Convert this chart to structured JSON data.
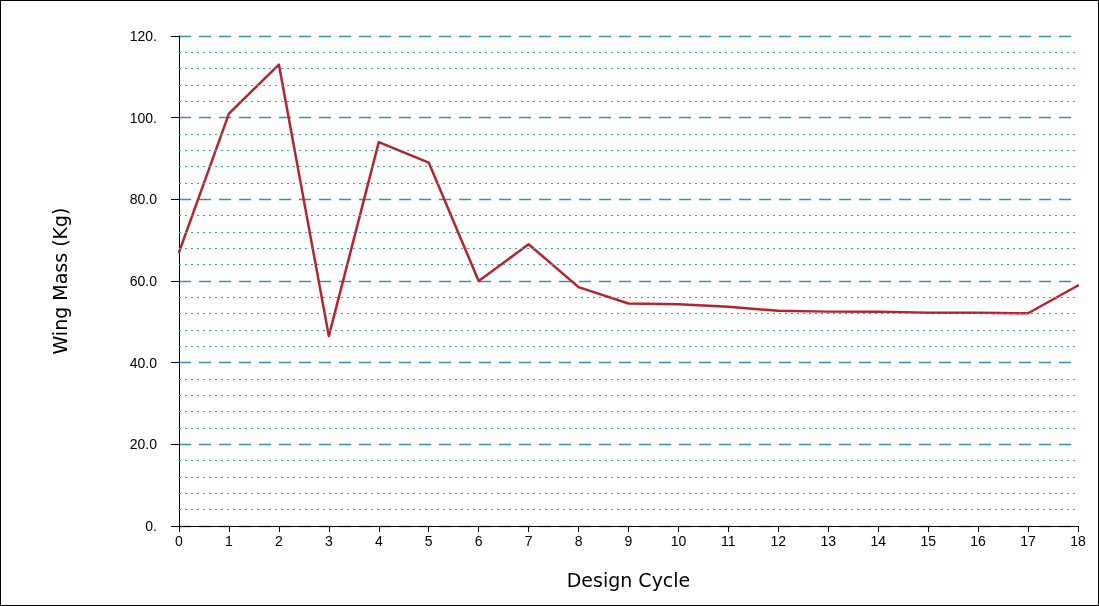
{
  "chart_data": {
    "type": "line",
    "xlabel": "Design Cycle",
    "ylabel": "Wing Mass (Kg)",
    "x": [
      0,
      1,
      2,
      3,
      4,
      5,
      6,
      7,
      8,
      9,
      10,
      11,
      12,
      13,
      14,
      15,
      16,
      17,
      18
    ],
    "series": [
      {
        "color": "#b8232b",
        "values": [
          67,
          101,
          113,
          46.5,
          94,
          89,
          60,
          69,
          58.5,
          54.5,
          54.3,
          53.7,
          52.7,
          52.5,
          52.5,
          52.2,
          52.2,
          52.1,
          58.9
        ]
      }
    ],
    "xlim": [
      0,
      18
    ],
    "xticks": [
      0,
      1,
      2,
      3,
      4,
      5,
      6,
      7,
      8,
      9,
      10,
      11,
      12,
      13,
      14,
      15,
      16,
      17,
      18
    ],
    "ylim": [
      0,
      120
    ],
    "yticks": [
      {
        "value": 0,
        "label": "0."
      },
      {
        "value": 4,
        "label": null
      },
      {
        "value": 8,
        "label": null
      },
      {
        "value": 12,
        "label": null
      },
      {
        "value": 16,
        "label": null
      },
      {
        "value": 20,
        "label": "20.0"
      },
      {
        "value": 24,
        "label": null
      },
      {
        "value": 28,
        "label": null
      },
      {
        "value": 32,
        "label": null
      },
      {
        "value": 36,
        "label": null
      },
      {
        "value": 40,
        "label": "40.0"
      },
      {
        "value": 44,
        "label": null
      },
      {
        "value": 48,
        "label": null
      },
      {
        "value": 52,
        "label": null
      },
      {
        "value": 56,
        "label": null
      },
      {
        "value": 60,
        "label": "60.0"
      },
      {
        "value": 64,
        "label": null
      },
      {
        "value": 68,
        "label": null
      },
      {
        "value": 72,
        "label": null
      },
      {
        "value": 76,
        "label": null
      },
      {
        "value": 80,
        "label": "80.0"
      },
      {
        "value": 84,
        "label": null
      },
      {
        "value": 88,
        "label": null
      },
      {
        "value": 92,
        "label": null
      },
      {
        "value": 96,
        "label": null
      },
      {
        "value": 100,
        "label": "100."
      },
      {
        "value": 104,
        "label": null
      },
      {
        "value": 108,
        "label": null
      },
      {
        "value": 112,
        "label": null
      },
      {
        "value": 116,
        "label": null
      },
      {
        "value": 120,
        "label": "120."
      }
    ],
    "grid": "y",
    "marker": "none",
    "line_style": "solid"
  }
}
